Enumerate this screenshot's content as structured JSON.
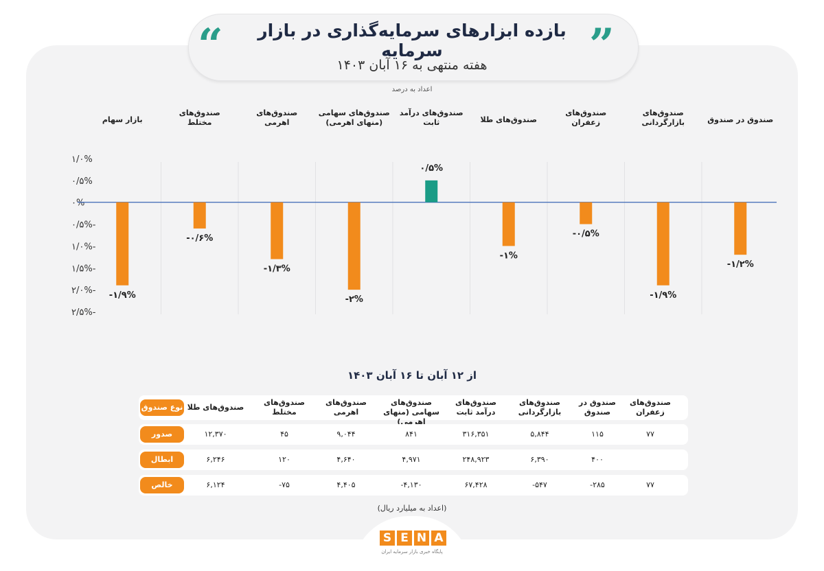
{
  "header": {
    "title": "بازده ابزارهای سرمایه‌گذاری در بازار سرمایه",
    "subtitle": "هفته منتهی به ۱۶ آبان ۱۴۰۳",
    "unit_note": "اعداد به درصد"
  },
  "chart_data": {
    "type": "bar",
    "categories": [
      "بازار سهام",
      "صندوق‌های مختلط",
      "صندوق‌های اهرمی",
      "صندوق‌های سهامی (منهای اهرمی)",
      "صندوق‌های درآمد ثابت",
      "صندوق‌های طلا",
      "صندوق‌های زعفران",
      "صندوق‌های بازارگردانی",
      "صندوق در صندوق"
    ],
    "values": [
      -1.9,
      -0.6,
      -1.3,
      -2.0,
      0.5,
      -1.0,
      -0.5,
      -1.9,
      -1.2
    ],
    "value_labels": [
      "-۱/۹%",
      "-۰/۶%",
      "-۱/۳%",
      "-۲%",
      "۰/۵%",
      "-۱%",
      "-۰/۵%",
      "-۱/۹%",
      "-۱/۲%"
    ],
    "yticks": [
      "۱/۰%",
      "۰/۵%",
      "۰%",
      "-۰/۵%",
      "-۱/۰%",
      "-۱/۵%",
      "-۲/۰%",
      "-۲/۵%"
    ],
    "ytick_values": [
      1.0,
      0.5,
      0,
      -0.5,
      -1.0,
      -1.5,
      -2.0,
      -2.5
    ],
    "ylim": [
      -2.5,
      1.0
    ],
    "colors": {
      "negative": "#f28b1c",
      "positive": "#1a9c86",
      "zero_line": "#3a66b5"
    }
  },
  "table": {
    "range_title": "از ۱۲ آبان تا ۱۶ آبان ۱۴۰۳",
    "header_label": "نوع صندوق",
    "columns": [
      "صندوق‌های طلا",
      "صندوق‌های مختلط",
      "صندوق‌های اهرمی",
      "صندوق‌های سهامی (منهای اهرمی)",
      "صندوق‌های درآمد ثابت",
      "صندوق‌های بازارگردانی",
      "صندوق در صندوق",
      "صندوق‌های زعفران"
    ],
    "rows": [
      {
        "label": "صدور",
        "values": [
          "۱۲,۳۷۰",
          "۴۵",
          "۹,۰۴۴",
          "۸۴۱",
          "۳۱۶,۳۵۱",
          "۵,۸۴۴",
          "۱۱۵",
          "۷۷"
        ]
      },
      {
        "label": "ابطال",
        "values": [
          "۶,۲۴۶",
          "۱۲۰",
          "۴,۶۴۰",
          "۴,۹۷۱",
          "۲۴۸,۹۲۳",
          "۶,۳۹۰",
          "۴۰۰",
          ""
        ]
      },
      {
        "label": "خالص",
        "values": [
          "۶,۱۲۴",
          "-۷۵",
          "۴,۴۰۵",
          "-۴,۱۳۰",
          "۶۷,۴۲۸",
          "-۵۴۷",
          "-۲۸۵",
          "۷۷"
        ]
      }
    ],
    "footnote": "(اعداد به میلیارد ریال)"
  },
  "logo": {
    "letters": [
      "S",
      "E",
      "N",
      "A"
    ],
    "tagline": "پایگاه خبری بازار سرمایه ایران",
    "color": "#f28b1c"
  }
}
